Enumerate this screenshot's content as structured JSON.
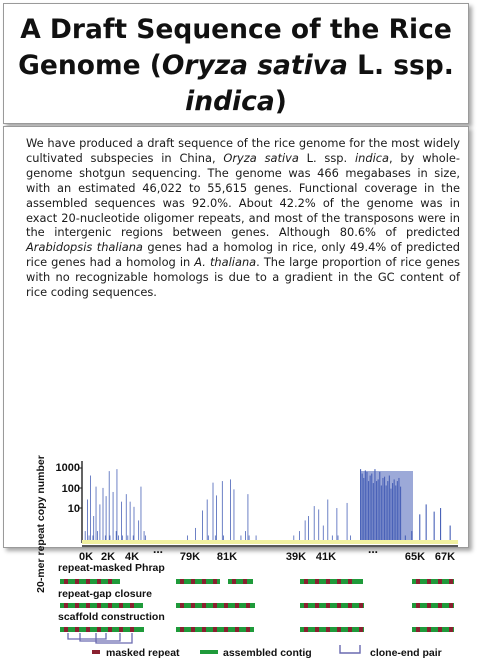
{
  "title": {
    "part1": "A Draft Sequence of the Rice Genome (",
    "italic1": "Oryza sativa",
    "part2": " L. ssp. ",
    "italic2": "indica",
    "part3": ")"
  },
  "abstract": {
    "s1": "We have produced a draft sequence of the rice genome for the most widely cultivated subspecies in China, ",
    "i1": "Oryza sativa",
    "s2": " L. ssp. ",
    "i2": "indica",
    "s3": ", by whole-genome shotgun sequencing. The genome was 466 megabases in size, with an estimated 46,022 to 55,615 genes. Functional coverage in the assembled sequences was 92.0%. About 42.2% of the genome was in exact 20-nucleotide oligomer repeats, and most of the transposons were in the intergenic regions between genes. Although 80.6% of predicted ",
    "i3": "Arabidopsis thaliana",
    "s4": " genes had a homolog in rice, only 49.4% of predicted rice genes had a homolog in ",
    "i4": "A. thaliana",
    "s5": ". The large proportion of rice genes with no recognizable homologs is due to a gradient in the GC content of rice coding sequences."
  },
  "figure": {
    "y_axis_label": "20-mer repeat copy number",
    "y_ticks": [
      "1000",
      "100",
      "10"
    ],
    "x_ticks": [
      "0K",
      "2K",
      "4K",
      "79K",
      "81K",
      "39K",
      "41K",
      "65K",
      "67K"
    ],
    "ellipsis": "...",
    "rows": [
      "repeat-masked Phrap",
      "repeat-gap closure",
      "scaffold construction"
    ],
    "legend": [
      "masked repeat",
      "assembled contig",
      "clone-end pair"
    ],
    "colors": {
      "bar": "#4a63b8",
      "contig": "#1f9a3a",
      "repeat": "#8a2030",
      "clone": "#6a6ab0",
      "baseline": "#f0f0a0"
    }
  },
  "chart_data": {
    "type": "bar",
    "title": "",
    "xlabel": "",
    "ylabel": "20-mer repeat copy number",
    "yscale": "log",
    "ylim": [
      1,
      1000
    ],
    "panels": [
      {
        "x_range_k": [
          0,
          4.3
        ],
        "x_ticks": [
          "0K",
          "2K",
          "4K"
        ],
        "values": [
          1,
          3,
          1,
          1,
          55,
          1,
          2,
          1,
          500,
          1,
          1,
          2,
          12,
          1,
          1,
          180,
          1,
          3,
          1,
          1,
          35,
          1,
          1,
          1,
          160,
          1,
          1,
          2,
          75,
          1,
          1,
          1,
          750,
          2,
          1,
          1,
          1,
          110,
          1,
          1,
          1,
          3,
          900,
          1,
          2,
          1,
          1,
          1,
          45,
          2,
          1,
          1,
          1,
          1,
          90,
          1,
          2,
          1,
          1,
          45,
          1,
          1,
          1,
          2,
          28,
          1,
          1,
          1,
          1,
          1,
          8,
          1,
          1,
          180,
          1,
          1,
          1,
          3,
          1,
          2
        ]
      },
      {
        "x_range_k": [
          78,
          83
        ],
        "x_ticks": [
          "79K",
          "81K"
        ],
        "values": [
          1,
          1,
          1,
          1,
          1,
          1,
          2,
          1,
          1,
          1,
          1,
          1,
          1,
          4,
          1,
          1,
          1,
          1,
          1,
          20,
          1,
          1,
          1,
          55,
          2,
          1,
          1,
          1,
          260,
          1,
          2,
          80,
          1,
          1,
          1,
          1,
          300,
          2,
          1,
          1,
          1,
          1,
          1,
          350,
          1,
          1,
          140,
          1,
          1,
          1,
          1,
          1,
          2,
          1,
          1,
          1,
          3,
          1,
          90,
          2,
          1,
          1,
          1,
          1,
          1,
          2,
          1
        ]
      },
      {
        "x_range_k": [
          38.5,
          42.7
        ],
        "x_ticks": [
          "39K",
          "41K"
        ],
        "values": [
          1,
          1,
          1,
          2,
          1,
          1,
          1,
          1,
          3,
          1,
          1,
          1,
          1,
          8,
          1,
          1,
          12,
          1,
          1,
          1,
          1,
          30,
          1,
          1,
          1,
          22,
          1,
          1,
          1,
          5,
          1,
          1,
          1,
          55,
          1,
          1,
          1,
          2,
          1,
          1,
          1,
          25,
          2,
          1,
          1,
          1,
          1,
          1,
          1,
          1,
          40,
          1,
          1,
          2,
          1,
          1,
          1,
          1,
          1,
          1
        ]
      },
      {
        "x_range_k": [
          63.5,
          67.9
        ],
        "x_ticks": [
          "65K",
          "67K"
        ],
        "values": [
          900,
          600,
          400,
          800,
          700,
          300,
          500,
          600,
          250,
          900,
          300,
          350,
          700,
          200,
          400,
          450,
          200,
          300,
          500,
          150,
          250,
          350,
          200,
          300,
          400,
          180,
          1,
          1,
          2,
          1,
          1,
          1,
          3,
          1,
          1,
          1,
          1,
          14,
          1,
          1,
          1,
          35,
          1,
          1,
          1,
          1,
          18,
          1,
          1,
          1,
          25,
          1,
          1,
          1,
          1,
          1,
          5,
          1,
          1,
          1
        ]
      }
    ]
  }
}
